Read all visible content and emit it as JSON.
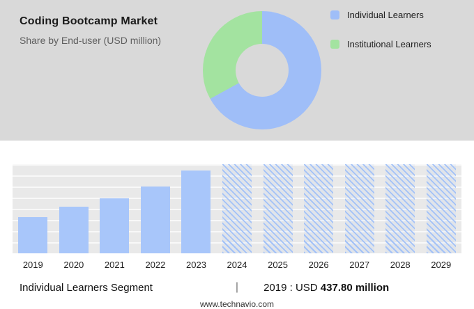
{
  "header": {
    "title": "Coding Bootcamp Market",
    "subtitle": "Share by End-user (USD million)"
  },
  "legend": [
    {
      "label": "Individual Learners",
      "color": "#9fbef8"
    },
    {
      "label": "Institutional Learners",
      "color": "#a3e3a0"
    }
  ],
  "chart_data": [
    {
      "type": "pie",
      "donut": true,
      "title": "Share by End-user (USD million)",
      "labels": [
        "Individual Learners",
        "Institutional Learners"
      ],
      "values": [
        67,
        33
      ],
      "colors": [
        "#9fbef8",
        "#a3e3a0"
      ],
      "legend_position": "right"
    },
    {
      "type": "bar",
      "title": "Individual Learners Segment",
      "categories": [
        "2019",
        "2020",
        "2021",
        "2022",
        "2023",
        "2024",
        "2025",
        "2026",
        "2027",
        "2028",
        "2029"
      ],
      "values_usd_million_est": [
        437.8,
        555,
        662,
        801,
        993,
        null,
        null,
        null,
        null,
        null,
        null
      ],
      "known_values": {
        "2019": 437.8
      },
      "heights_pct": [
        41,
        52,
        62,
        75,
        93,
        100,
        100,
        100,
        100,
        100,
        100
      ],
      "forecast_start_index": 5,
      "bar_color": "#a8c6fa",
      "forecast_style": "hatched",
      "grid": true,
      "xlabel": "",
      "ylabel": ""
    }
  ],
  "caption": {
    "segment_label": "Individual Learners Segment",
    "separator": "|",
    "stat_prefix": "2019 : USD",
    "stat_value": "437.80 million"
  },
  "footer": {
    "website": "www.technavio.com"
  }
}
